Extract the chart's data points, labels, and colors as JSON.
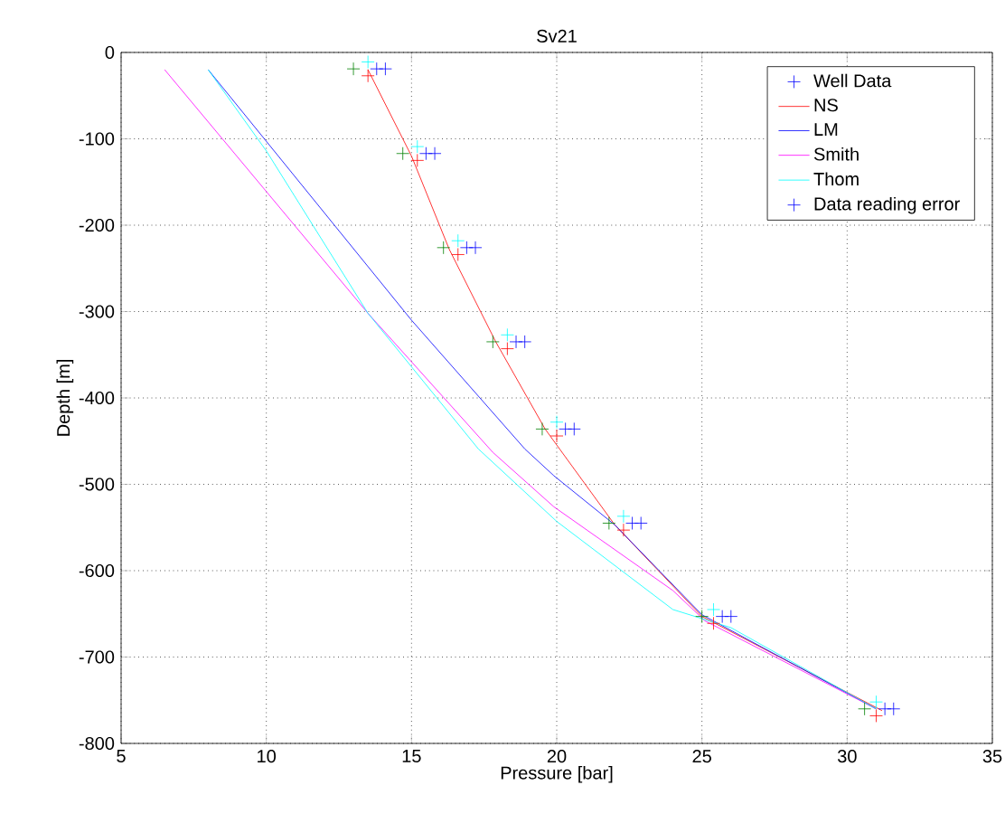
{
  "chart_data": {
    "type": "line",
    "title": "Sv21",
    "xlabel": "Pressure [bar]",
    "ylabel": "Depth [m]",
    "xlim": [
      5,
      35
    ],
    "ylim": [
      -800,
      0
    ],
    "xticks": [
      5,
      10,
      15,
      20,
      25,
      30,
      35
    ],
    "yticks": [
      -800,
      -700,
      -600,
      -500,
      -400,
      -300,
      -200,
      -100,
      0
    ],
    "grid": true,
    "legend": "top right",
    "series": [
      {
        "name": "Well Data",
        "type": "scatter",
        "marker": "cross",
        "color": "#0000ff",
        "x": [
          13.8,
          15.5,
          16.9,
          18.6,
          20.3,
          22.6,
          25.7,
          31.3
        ],
        "values": [
          -19,
          -117,
          -226,
          -335,
          -436,
          -545,
          -653,
          -760
        ]
      },
      {
        "name": "NS",
        "color": "#ff0000",
        "x": [
          13.5,
          15,
          16.3,
          17.9,
          19.6,
          22,
          25,
          31.2
        ],
        "values": [
          -20,
          -120,
          -228,
          -335,
          -436,
          -547,
          -653,
          -762
        ]
      },
      {
        "name": "LM",
        "color": "#0000ff",
        "x": [
          8,
          15,
          18.9,
          19.9,
          22,
          25,
          31
        ],
        "values": [
          -20,
          -310,
          -459,
          -490,
          -547,
          -651,
          -760
        ]
      },
      {
        "name": "Smith",
        "color": "#ff00ff",
        "x": [
          6.5,
          13.5,
          17.8,
          19.9,
          24,
          25.1,
          31
        ],
        "values": [
          -20,
          -302,
          -463,
          -526,
          -623,
          -658,
          -760
        ]
      },
      {
        "name": "Thom",
        "color": "#00ffff",
        "x": [
          8,
          10,
          13.5,
          17.3,
          20,
          24,
          26,
          31
        ],
        "values": [
          -20,
          -114,
          -302,
          -459,
          -543,
          -645,
          -666,
          -760
        ]
      },
      {
        "name": "Data reading error",
        "type": "scatter",
        "marker": "cross",
        "x": [
          14.1,
          15.8,
          17.2,
          18.9,
          20.6,
          22.9,
          26.0,
          31.6,
          13.0,
          14.7,
          16.1,
          17.8,
          19.5,
          21.8,
          25.0,
          30.6,
          13.5,
          15.2,
          16.6,
          18.3,
          20.0,
          22.3,
          25.4,
          31.0,
          13.5,
          15.2,
          16.6,
          18.3,
          20.0,
          22.3,
          25.4,
          31.0
        ],
        "values": [
          -19,
          -117,
          -226,
          -335,
          -436,
          -545,
          -653,
          -760,
          -19,
          -117,
          -226,
          -335,
          -436,
          -545,
          -653,
          -760,
          -27,
          -125,
          -234,
          -343,
          -444,
          -553,
          -661,
          -768,
          -11,
          -109,
          -218,
          -327,
          -428,
          -537,
          -645,
          -752
        ],
        "colors": [
          "#0000ff",
          "#0000ff",
          "#0000ff",
          "#0000ff",
          "#0000ff",
          "#0000ff",
          "#0000ff",
          "#0000ff",
          "#008000",
          "#008000",
          "#008000",
          "#008000",
          "#008000",
          "#008000",
          "#008000",
          "#008000",
          "#ff0000",
          "#ff0000",
          "#ff0000",
          "#ff0000",
          "#ff0000",
          "#ff0000",
          "#ff0000",
          "#ff0000",
          "#00ffff",
          "#00ffff",
          "#00ffff",
          "#00ffff",
          "#00ffff",
          "#00ffff",
          "#00ffff",
          "#00ffff"
        ]
      }
    ]
  }
}
